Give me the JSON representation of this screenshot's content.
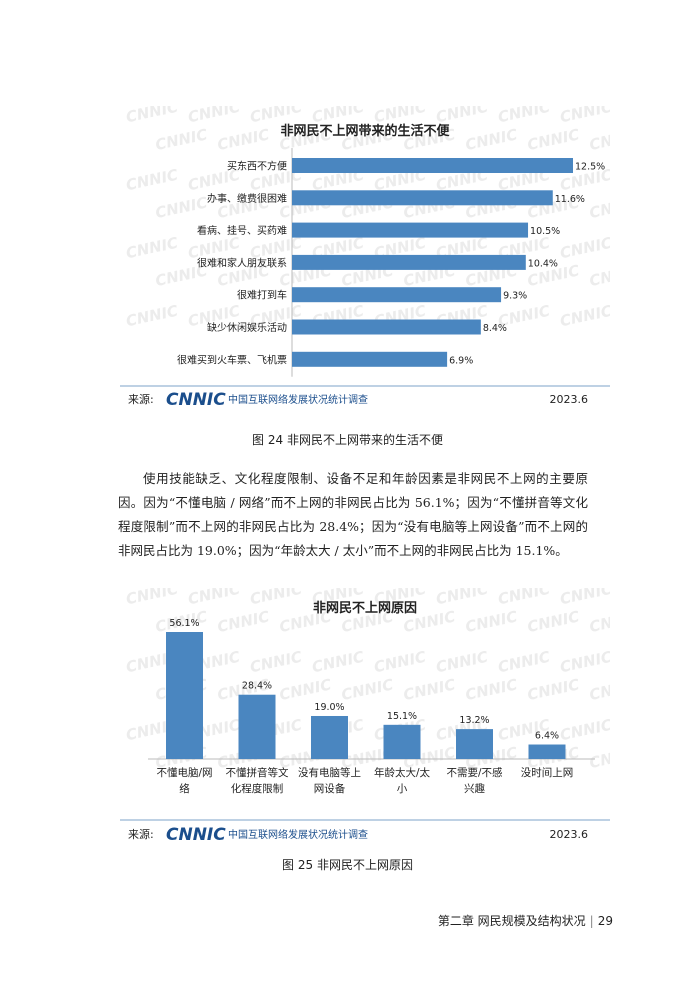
{
  "figure24": {
    "chart_data": {
      "type": "bar",
      "orientation": "horizontal",
      "title": "非网民不上网带来的生活不便",
      "categories": [
        "买东西不方便",
        "办事、缴费很困难",
        "看病、挂号、买药难",
        "很难和家人朋友联系",
        "很难打到车",
        "缺少休闲娱乐活动",
        "很难买到火车票、飞机票"
      ],
      "values": [
        12.5,
        11.6,
        10.5,
        10.4,
        9.3,
        8.4,
        6.9
      ],
      "value_labels": [
        "12.5%",
        "11.6%",
        "10.5%",
        "10.4%",
        "9.3%",
        "8.4%",
        "6.9%"
      ],
      "bar_color": "#4a86c0",
      "grid": false
    },
    "source_label": "来源:",
    "logo_text": "CNNIC",
    "source_org": "中国互联网络发展状况统计调查",
    "date": "2023.6",
    "caption": "图 24 非网民不上网带来的生活不便"
  },
  "paragraph": "使用技能缺乏、文化程度限制、设备不足和年龄因素是非网民不上网的主要原因。因为“不懂电脑 / 网络”而不上网的非网民占比为 56.1%；因为“不懂拼音等文化程度限制”而不上网的非网民占比为 28.4%；因为“没有电脑等上网设备”而不上网的非网民占比为 19.0%；因为“年龄太大 / 太小”而不上网的非网民占比为 15.1%。",
  "figure25": {
    "chart_data": {
      "type": "bar",
      "orientation": "vertical",
      "title": "非网民不上网原因",
      "categories": [
        "不懂电脑/网络",
        "不懂拼音等文化程度限制",
        "没有电脑等上网设备",
        "年龄太大/太小",
        "不需要/不感兴趣",
        "没时间上网"
      ],
      "category_lines": [
        [
          "不懂电脑/网",
          "络"
        ],
        [
          "不懂拼音等文",
          "化程度限制"
        ],
        [
          "没有电脑等上",
          "网设备"
        ],
        [
          "年龄太大/太",
          "小"
        ],
        [
          "不需要/不感",
          "兴趣"
        ],
        [
          "没时间上网"
        ]
      ],
      "values": [
        56.1,
        28.4,
        19.0,
        15.1,
        13.2,
        6.4
      ],
      "value_labels": [
        "56.1%",
        "28.4%",
        "19.0%",
        "15.1%",
        "13.2%",
        "6.4%"
      ],
      "bar_color": "#4a86c0",
      "grid": false
    },
    "source_label": "来源:",
    "logo_text": "CNNIC",
    "source_org": "中国互联网络发展状况统计调查",
    "date": "2023.6",
    "caption": "图 25 非网民不上网原因"
  },
  "footer": {
    "chapter": "第二章 网民规模及结构状况",
    "separator": "|",
    "page_number": "29"
  },
  "colors": {
    "bar": "#4a86c0",
    "source_line": "#a8c2dc",
    "logo": "#1b4e8c",
    "watermark": "#ececec"
  }
}
